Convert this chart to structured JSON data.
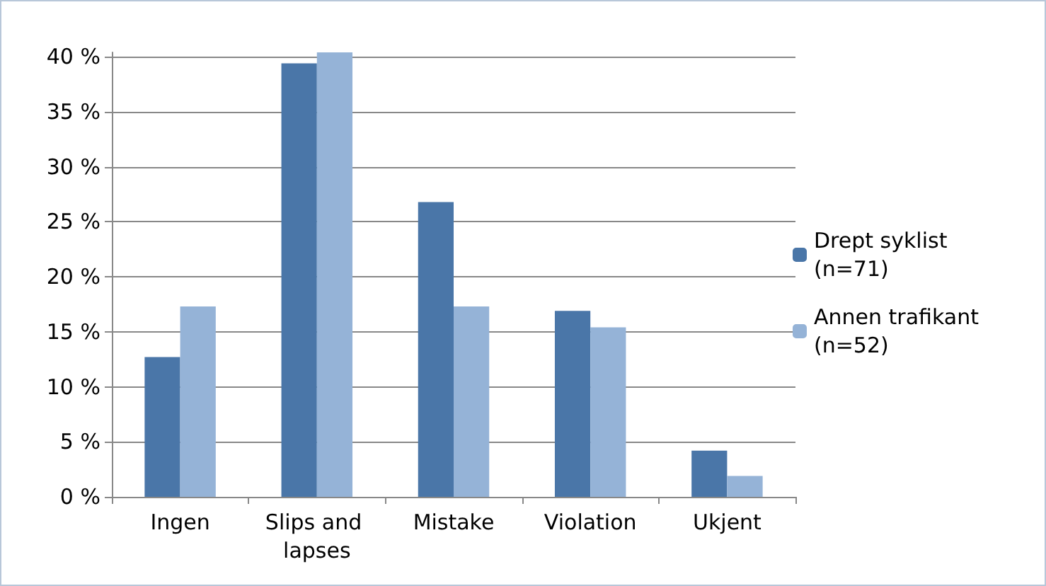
{
  "chart_data": {
    "type": "bar",
    "categories": [
      "Ingen",
      "Slips and lapses",
      "Mistake",
      "Violation",
      "Ukjent"
    ],
    "series": [
      {
        "name": "Drept syklist (n=71)",
        "color": "#4a76a8",
        "values": [
          12.7,
          39.4,
          26.8,
          16.9,
          4.2
        ]
      },
      {
        "name": "Annen trafikant (n=52)",
        "color": "#95b3d7",
        "values": [
          17.3,
          40.4,
          17.3,
          15.4,
          1.9
        ]
      }
    ],
    "ylim": [
      0,
      40.4
    ],
    "yticks": [
      {
        "value": 0,
        "label": "0 %"
      },
      {
        "value": 5,
        "label": "5 %"
      },
      {
        "value": 10,
        "label": "10 %"
      },
      {
        "value": 15,
        "label": "15 %"
      },
      {
        "value": 20,
        "label": "20 %"
      },
      {
        "value": 25,
        "label": "25 %"
      },
      {
        "value": 30,
        "label": "30 %"
      },
      {
        "value": 35,
        "label": "35 %"
      },
      {
        "value": 40,
        "label": "40 %"
      }
    ],
    "grid": "y",
    "legend": "right"
  }
}
